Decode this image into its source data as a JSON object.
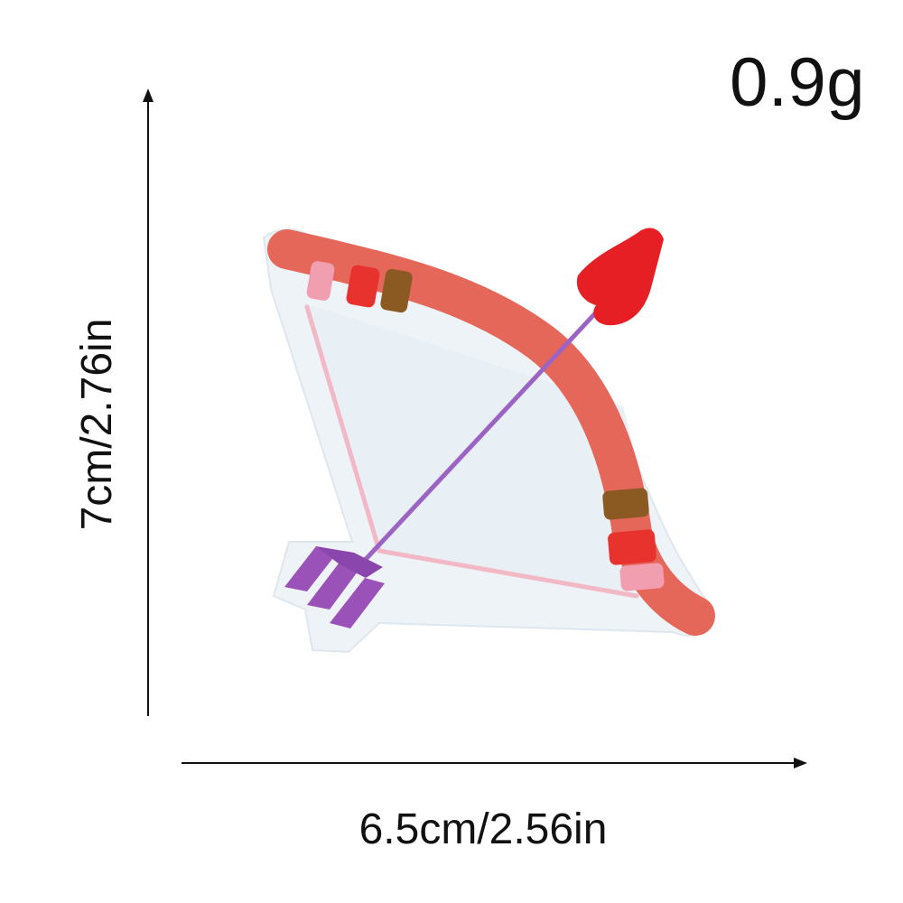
{
  "product": {
    "weight": "0.9g",
    "height_dimension": "7cm/2.76in",
    "width_dimension": "6.5cm/2.56in",
    "image": {
      "subject": "embroidered bow and arrow patch",
      "colors": {
        "bow": "#e5675a",
        "bow_wrap_red": "#e8322e",
        "bow_wrap_pink": "#f19fb0",
        "bow_wrap_brown": "#8a5a22",
        "bowstring": "#f2b8c6",
        "arrow_shaft": "#9b63c3",
        "arrow_fletching": "#9a52b8",
        "arrow_head": "#e51f24",
        "backing": "#e8eff5"
      }
    }
  }
}
